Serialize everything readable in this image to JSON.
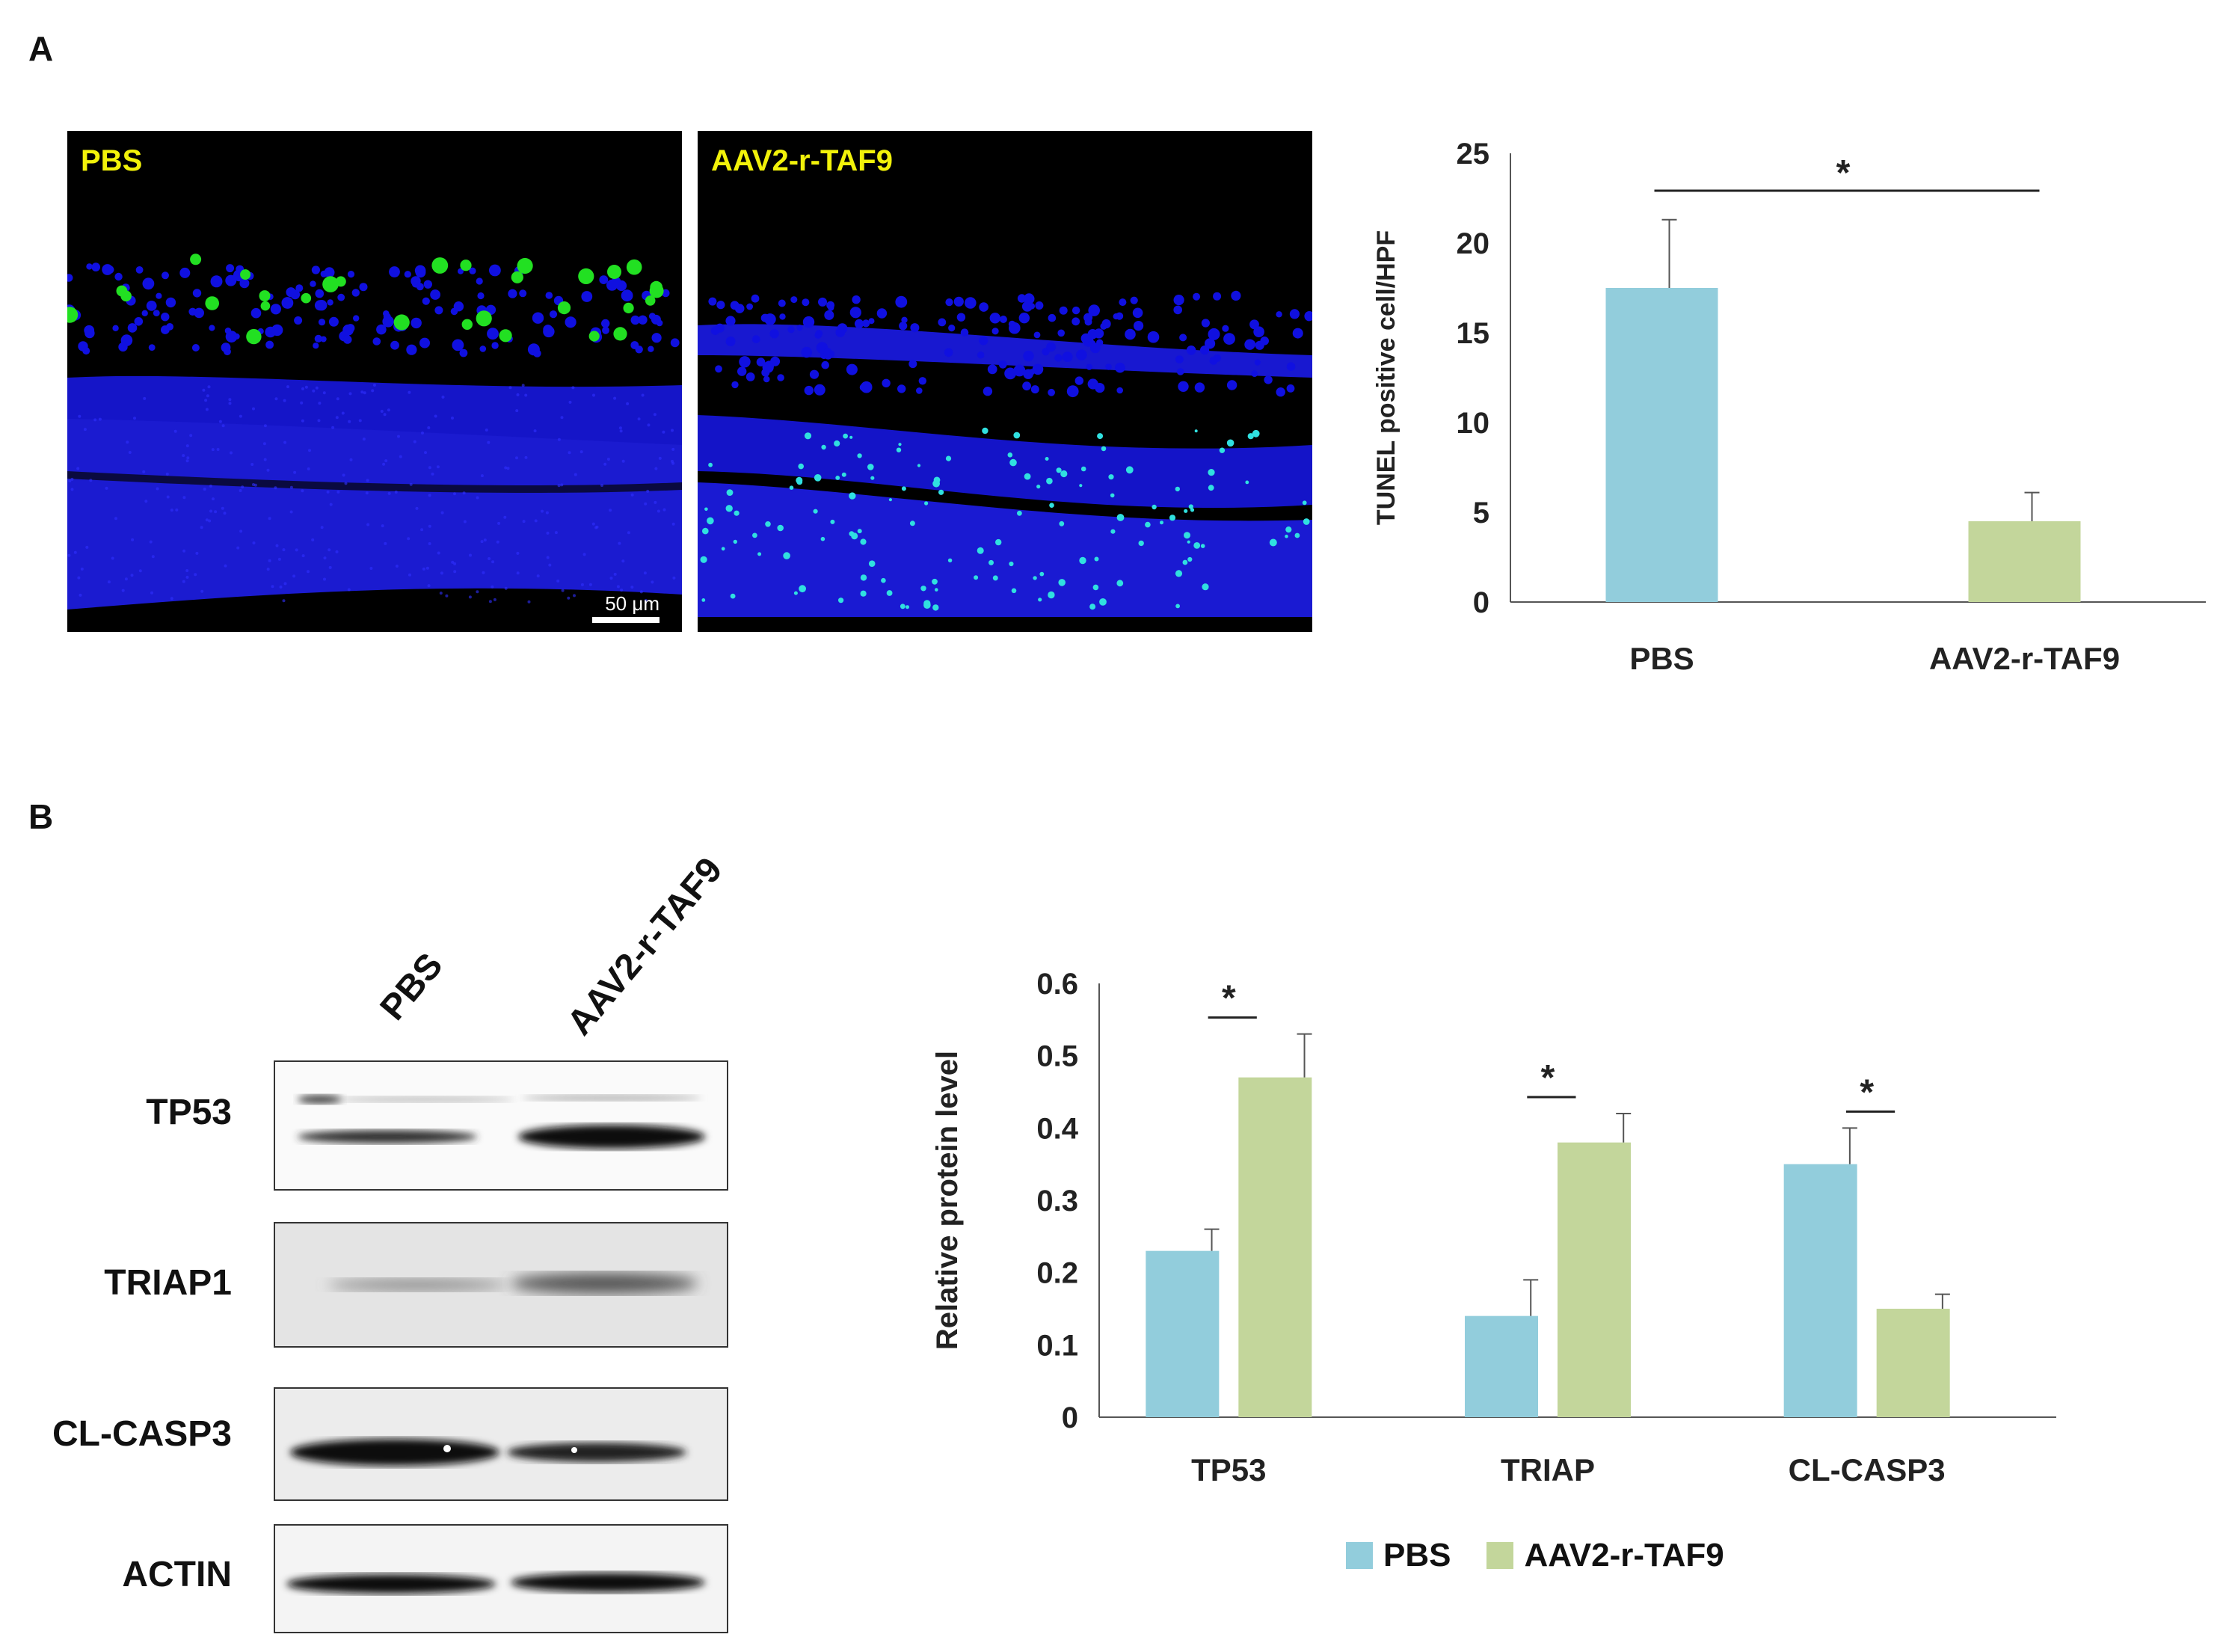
{
  "panels": {
    "a": "A",
    "b": "B"
  },
  "colors": {
    "pbs": "#92cddc",
    "aav": "#c3d69b",
    "nuclei": "#1010e0",
    "tunel": "#22e022",
    "label_yellow": "#f2f20a"
  },
  "micrographs": [
    {
      "label": "PBS",
      "scalebar": "50 μm"
    },
    {
      "label": "AAV2-r-TAF9"
    }
  ],
  "blot": {
    "lanes": [
      "PBS",
      "AAV2-r-TAF9"
    ],
    "rows": [
      "TP53",
      "TRIAP1",
      "CL-CASP3",
      "ACTIN"
    ]
  },
  "chart_data": [
    {
      "type": "bar",
      "categories": [
        "PBS",
        "AAV2-r-TAF9"
      ],
      "values": [
        17.5,
        4.5
      ],
      "errors": [
        3.8,
        1.6
      ],
      "colors": [
        "#92cddc",
        "#c3d69b"
      ],
      "title": "",
      "xlabel": "",
      "ylabel": "TUNEL positive cell/HPF",
      "ylim": [
        0,
        25
      ],
      "yticks": [
        "0",
        "5",
        "10",
        "15",
        "20",
        "25"
      ],
      "significance": [
        {
          "between": [
            "PBS",
            "AAV2-r-TAF9"
          ],
          "label": "*"
        }
      ],
      "grid": false
    },
    {
      "type": "bar",
      "categories": [
        "TP53",
        "TRIAP",
        "CL-CASP3"
      ],
      "series": [
        {
          "name": "PBS",
          "values": [
            0.23,
            0.14,
            0.35
          ],
          "errors": [
            0.03,
            0.05,
            0.05
          ]
        },
        {
          "name": "AAV2-r-TAF9",
          "values": [
            0.47,
            0.38,
            0.15
          ],
          "errors": [
            0.06,
            0.04,
            0.02
          ]
        }
      ],
      "title": "",
      "xlabel": "",
      "ylabel": "Relative protein level",
      "ylim": [
        0,
        0.6
      ],
      "yticks": [
        "0",
        "0.1",
        "0.2",
        "0.3",
        "0.4",
        "0.5",
        "0.6"
      ],
      "significance": [
        {
          "category": "TP53",
          "label": "*"
        },
        {
          "category": "TRIAP",
          "label": "*"
        },
        {
          "category": "CL-CASP3",
          "label": "*"
        }
      ],
      "legend": "bottom",
      "grid": false
    }
  ]
}
